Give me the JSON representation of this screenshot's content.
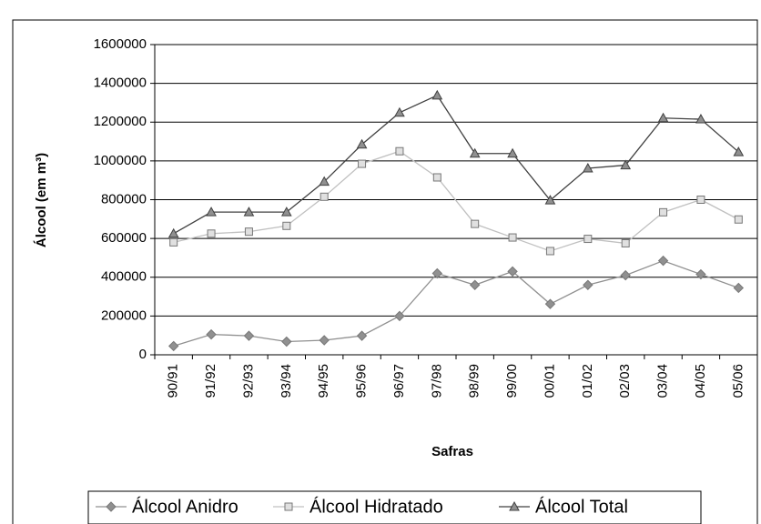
{
  "chart_data": {
    "type": "line",
    "x_label": "Safras",
    "y_label": "Álcool (em m³)",
    "categories": [
      "90/91",
      "91/92",
      "92/93",
      "93/94",
      "94/95",
      "95/96",
      "96/97",
      "97/98",
      "98/99",
      "99/00",
      "00/01",
      "01/02",
      "02/03",
      "03/04",
      "04/05",
      "05/06"
    ],
    "series": [
      {
        "name": "Álcool Anidro",
        "color": "#909090",
        "marker": "diamond",
        "values": [
          45000,
          105000,
          98000,
          68000,
          75000,
          98000,
          200000,
          420000,
          360000,
          430000,
          262000,
          360000,
          410000,
          485000,
          415000,
          345000
        ]
      },
      {
        "name": "Álcool Hidratado",
        "color": "#c0c0c0",
        "marker": "square",
        "values": [
          580000,
          625000,
          635000,
          665000,
          815000,
          985000,
          1050000,
          915000,
          675000,
          605000,
          535000,
          598000,
          575000,
          735000,
          800000,
          698000
        ]
      },
      {
        "name": "Álcool Total",
        "color": "#404040",
        "marker": "triangle",
        "values": [
          625000,
          736000,
          736000,
          736000,
          893000,
          1085000,
          1249000,
          1338000,
          1038000,
          1038000,
          797000,
          962000,
          978000,
          1221000,
          1215000,
          1046000
        ]
      }
    ],
    "ylim": [
      0,
      1600000
    ],
    "yticks": [
      0,
      200000,
      400000,
      600000,
      800000,
      1000000,
      1200000,
      1400000,
      1600000
    ],
    "grid": true,
    "legend": "bottom"
  }
}
